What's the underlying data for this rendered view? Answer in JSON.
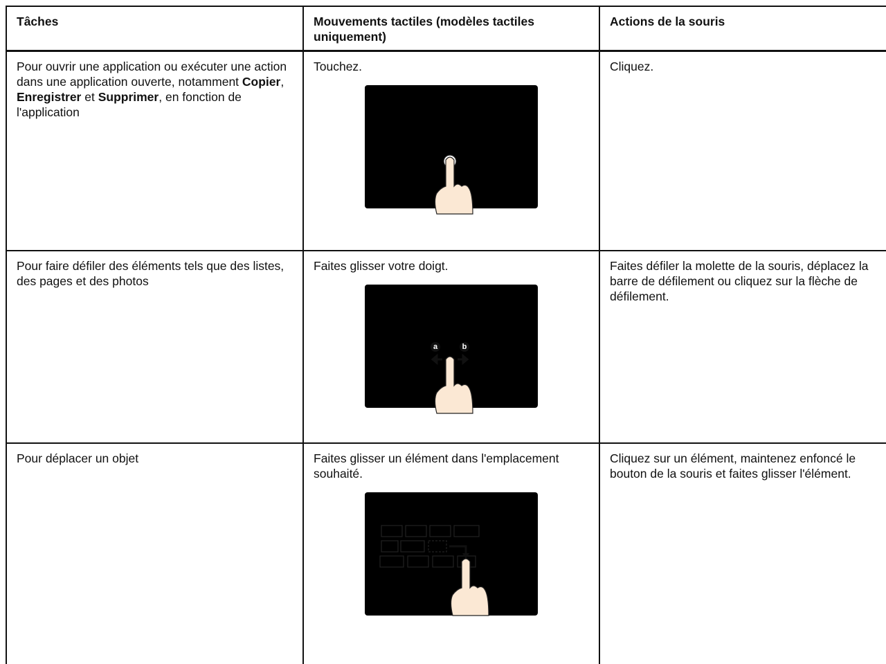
{
  "table": {
    "header": [
      "Tâches",
      "Mouvements tactiles (modèles tactiles uniquement)",
      "Actions de la souris"
    ],
    "rows": [
      [
        [
          "Pour ouvrir une application ou exécuter une action dans une application ouverte, notamment ",
          "Copier",
          ", ",
          "Enregistrer",
          " et ",
          "Supprimer",
          ", en fonction de l'application"
        ],
        "Touchez.",
        "Cliquez."
      ],
      [
        "Pour faire défiler des éléments tels que des listes, des pages et des photos",
        "Faites glisser votre doigt.",
        "Faites défiler la molette de la souris, déplacez la barre de défilement ou cliquez sur la flèche de défilement."
      ],
      [
        "Pour déplacer un objet",
        "Faites glisser un élément dans l'emplacement souhaité.",
        "Cliquez sur un élément, maintenez enfoncé le bouton de la souris et faites glisser l'élément."
      ]
    ]
  },
  "illustration_labels": [
    "a",
    "b"
  ]
}
